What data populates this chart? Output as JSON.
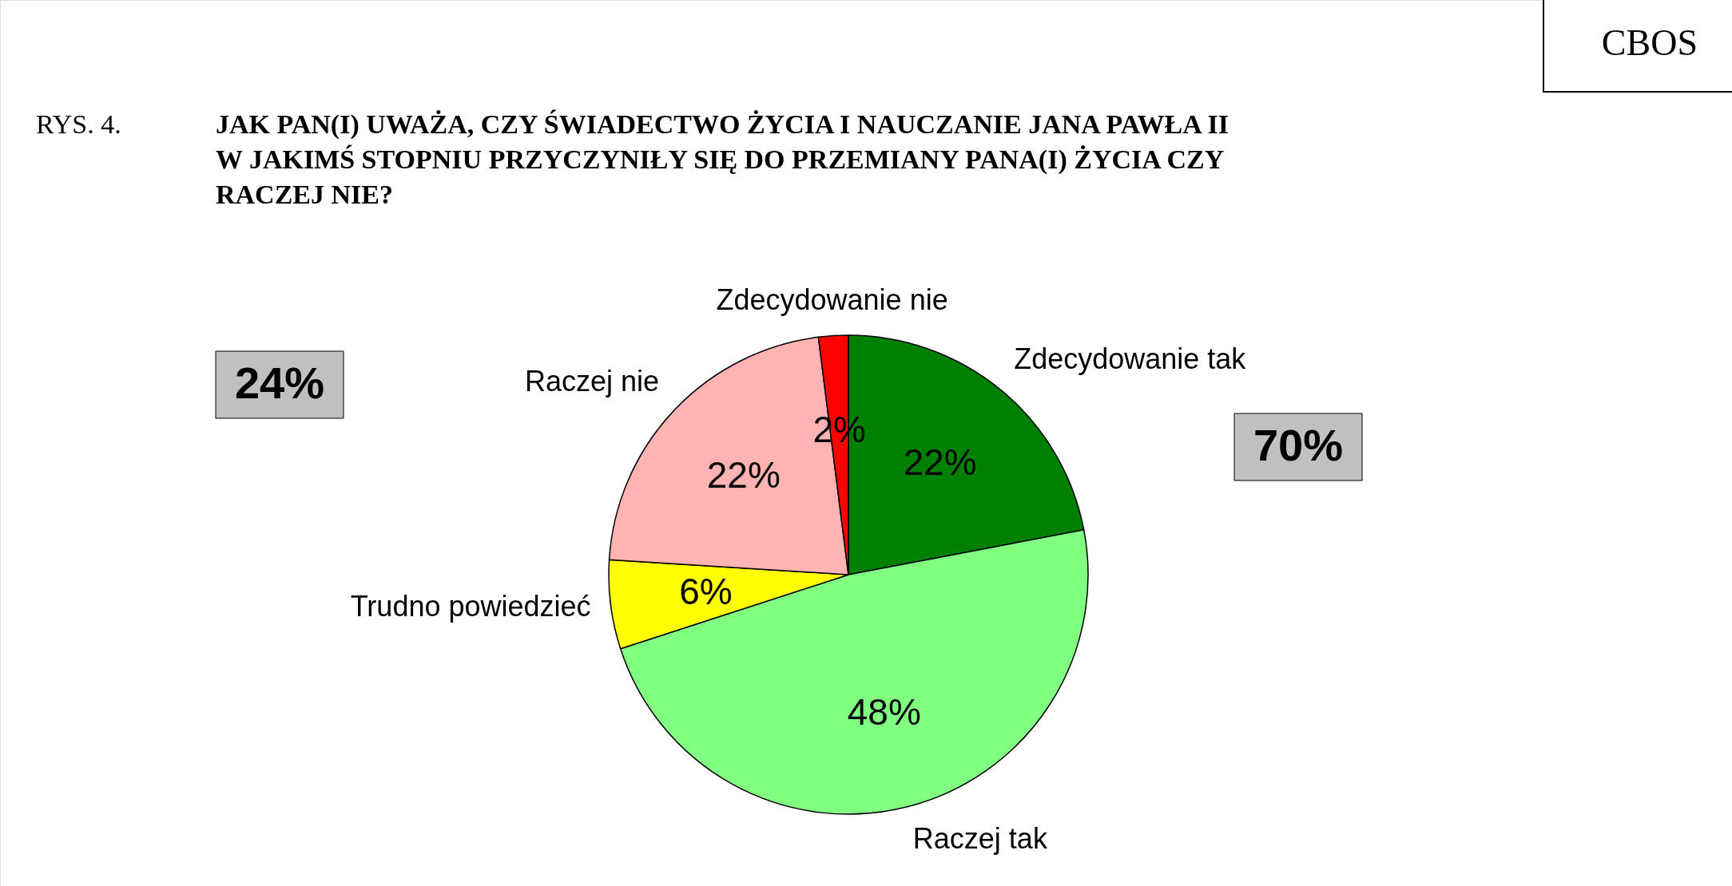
{
  "chart_data": {
    "type": "pie",
    "title": "JAK PAN(I) UWAŻA, CZY ŚWIADECTWO ŻYCIA I NAUCZANIE JANA PAWŁA II W JAKIMŚ STOPNIU PRZYCZYNIŁY SIĘ DO PRZEMIANY PANA(I) ŻYCIA CZY RACZEJ NIE?",
    "categories": [
      "Zdecydowanie tak",
      "Raczej tak",
      "Trudno powiedzieć",
      "Raczej nie",
      "Zdecydowanie nie"
    ],
    "values": [
      22,
      48,
      6,
      22,
      2
    ],
    "value_labels": [
      "22%",
      "48%",
      "6%",
      "22%",
      "2%"
    ],
    "colors": [
      "#008000",
      "#80ff80",
      "#ffff00",
      "#ffb3b3",
      "#ff0000"
    ],
    "annotations": [
      "RYS. 4.",
      "CBOS",
      "24%",
      "70%"
    ]
  }
}
